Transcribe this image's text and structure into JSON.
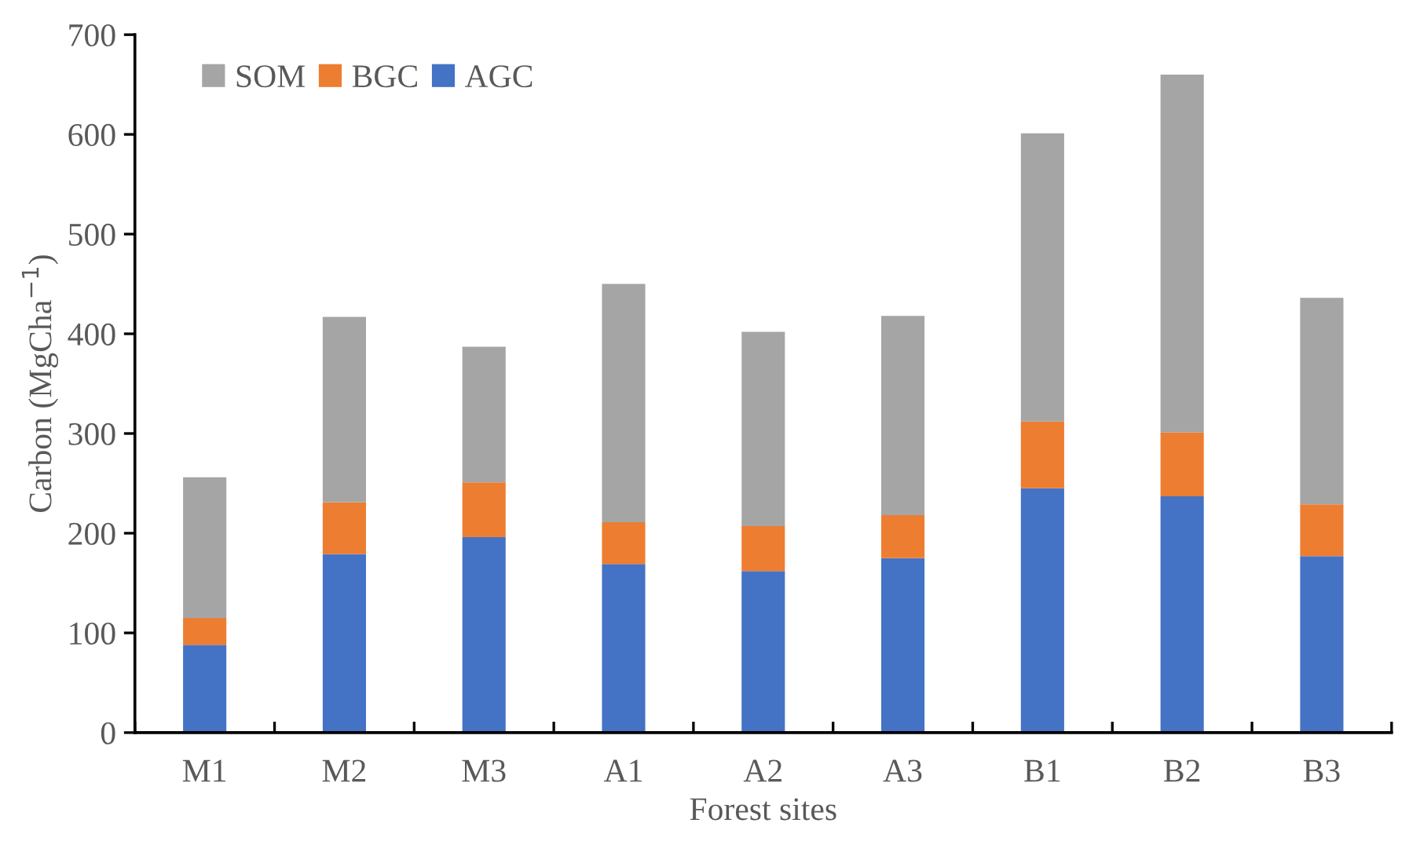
{
  "chart_data": {
    "type": "bar",
    "stacked": true,
    "xlabel": "Forest sites",
    "ylabel": "Carbon (MgCha$^{−1}$)",
    "categories": [
      "M1",
      "M2",
      "M3",
      "A1",
      "A2",
      "A3",
      "B1",
      "B2",
      "B3"
    ],
    "series": [
      {
        "name": "AGC",
        "color": "#4472c4",
        "values": [
          88,
          179,
          196,
          169,
          162,
          175,
          245,
          237,
          177
        ]
      },
      {
        "name": "BGC",
        "color": "#ed7d31",
        "values": [
          27,
          52,
          55,
          42,
          45,
          43,
          67,
          64,
          52
        ]
      },
      {
        "name": "SOM",
        "color": "#a5a5a5",
        "values": [
          141,
          186,
          136,
          239,
          195,
          200,
          289,
          359,
          207
        ]
      }
    ],
    "ylim": [
      0,
      700
    ],
    "yticks": [
      0,
      100,
      200,
      300,
      400,
      500,
      600,
      700
    ],
    "grid": false,
    "legend": "top left"
  }
}
